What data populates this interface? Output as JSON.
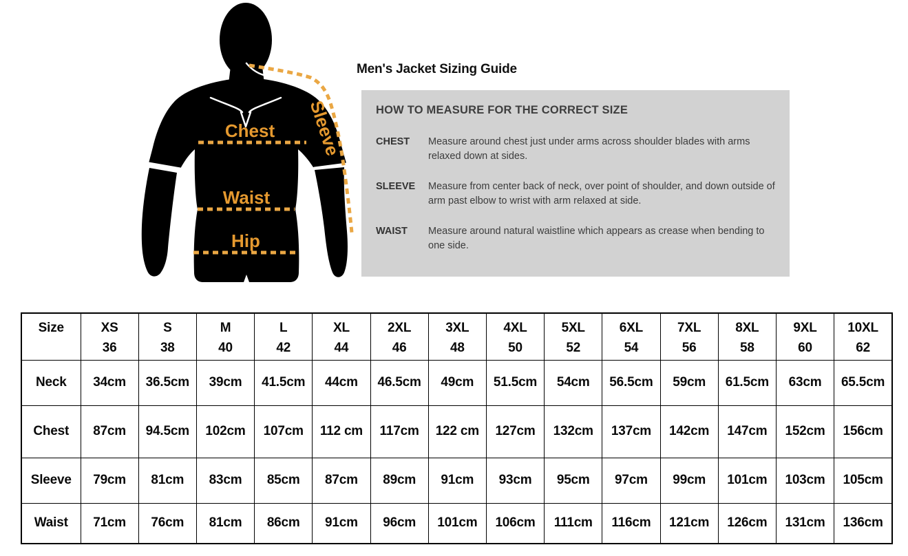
{
  "title": "Men's Jacket Sizing Guide",
  "figure": {
    "labels": {
      "chest": "Chest",
      "waist": "Waist",
      "hip": "Hip",
      "sleeve": "Sleeve"
    },
    "dash_color": "#EAA744",
    "label_color": "#E5992F",
    "silhouette_color": "#000000"
  },
  "instructions": {
    "heading": "HOW TO MEASURE FOR THE CORRECT SIZE",
    "panel_bg": "#D2D2D2",
    "items": [
      {
        "term": "CHEST",
        "text": "Measure around chest just under arms across shoulder blades with arms relaxed down at sides."
      },
      {
        "term": "SLEEVE",
        "text": "Measure from center back of neck, over point of shoulder, and down outside of arm past elbow to wrist with arm relaxed at side."
      },
      {
        "term": "WAIST",
        "text": "Measure around natural waistline which appears as crease when bending to one side."
      }
    ]
  },
  "size_table": {
    "corner_label": "Size",
    "sizes": [
      {
        "label": "XS",
        "number": "36"
      },
      {
        "label": "S",
        "number": "38"
      },
      {
        "label": "M",
        "number": "40"
      },
      {
        "label": "L",
        "number": "42"
      },
      {
        "label": "XL",
        "number": "44"
      },
      {
        "label": "2XL",
        "number": "46"
      },
      {
        "label": "3XL",
        "number": "48"
      },
      {
        "label": "4XL",
        "number": "50"
      },
      {
        "label": "5XL",
        "number": "52"
      },
      {
        "label": "6XL",
        "number": "54"
      },
      {
        "label": "7XL",
        "number": "56"
      },
      {
        "label": "8XL",
        "number": "58"
      },
      {
        "label": "9XL",
        "number": "60"
      },
      {
        "label": "10XL",
        "number": "62"
      }
    ],
    "rows": [
      {
        "label": "Neck",
        "values": [
          "34cm",
          "36.5cm",
          "39cm",
          "41.5cm",
          "44cm",
          "46.5cm",
          "49cm",
          "51.5cm",
          "54cm",
          "56.5cm",
          "59cm",
          "61.5cm",
          "63cm",
          "65.5cm"
        ]
      },
      {
        "label": "Chest",
        "values": [
          "87cm",
          "94.5cm",
          "102cm",
          "107cm",
          "112 cm",
          "117cm",
          "122 cm",
          "127cm",
          "132cm",
          "137cm",
          "142cm",
          "147cm",
          "152cm",
          "156cm"
        ]
      },
      {
        "label": "Sleeve",
        "values": [
          "79cm",
          "81cm",
          "83cm",
          "85cm",
          "87cm",
          "89cm",
          "91cm",
          "93cm",
          "95cm",
          "97cm",
          "99cm",
          "101cm",
          "103cm",
          "105cm"
        ]
      },
      {
        "label": "Waist",
        "values": [
          "71cm",
          "76cm",
          "81cm",
          "86cm",
          "91cm",
          "96cm",
          "101cm",
          "106cm",
          "111cm",
          "116cm",
          "121cm",
          "126cm",
          "131cm",
          "136cm"
        ]
      }
    ]
  }
}
